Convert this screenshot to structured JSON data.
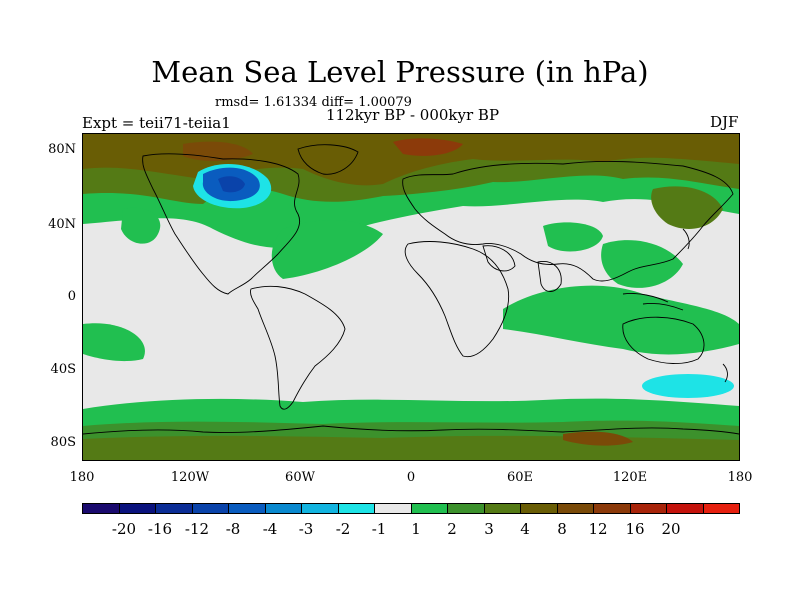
{
  "title": "Mean Sea Level Pressure (in hPa)",
  "stats_line": "rmsd= 1.61334  diff= 1.00079",
  "period": "112kyr BP - 000kyr BP",
  "experiment": "Expt = teii71-teiia1",
  "season": "DJF",
  "map": {
    "lat_labels": [
      "80N",
      "40N",
      "0",
      "40S",
      "80S"
    ],
    "lon_labels": [
      "180",
      "120W",
      "60W",
      "0",
      "60E",
      "120E",
      "180"
    ],
    "land_outline_color": "#000000",
    "background_color": "#e8e8e8"
  },
  "colorbar": {
    "colors": [
      "#1a0a6e",
      "#0a127d",
      "#0b2d96",
      "#0a43aa",
      "#0a5cbf",
      "#0a89cf",
      "#12b4e0",
      "#1ee3e6",
      "#e8e8e8",
      "#21bf50",
      "#3c912c",
      "#547a15",
      "#695d05",
      "#7a4a08",
      "#8c3a0a",
      "#a8240a",
      "#c4120b",
      "#e6200f"
    ],
    "labels": [
      "-20",
      "-16",
      "-12",
      "-8",
      "-4",
      "-3",
      "-2",
      "-1",
      "1",
      "2",
      "3",
      "4",
      "8",
      "12",
      "16",
      "20"
    ]
  }
}
